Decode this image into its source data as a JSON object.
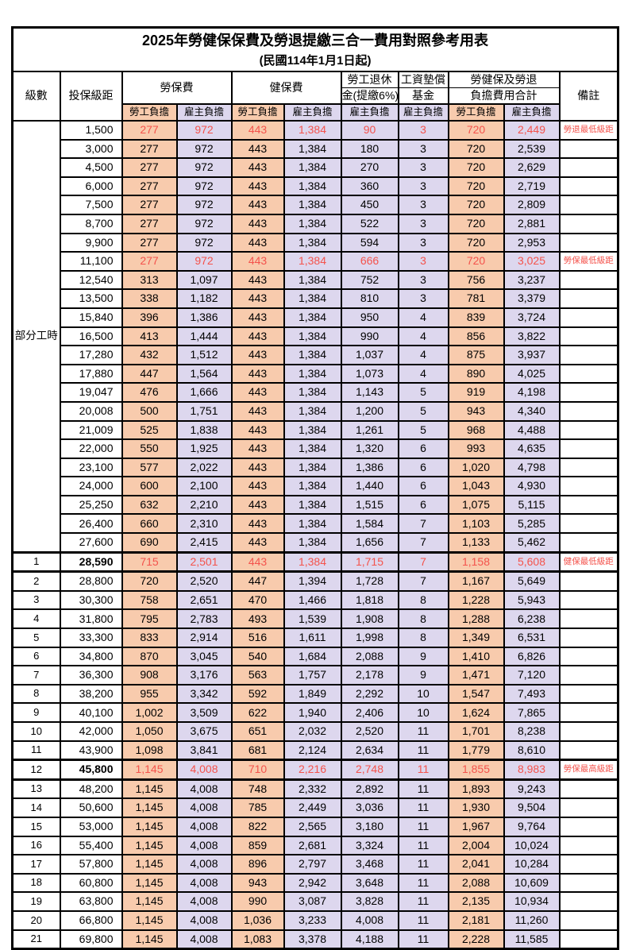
{
  "title": "2025年勞健保保費及勞退提繳三合一費用對照參考用表",
  "subtitle": "(民國114年1月1日起)",
  "colors": {
    "employee_fill": "#F8CBAD",
    "employer_fill": "#DDD7EE",
    "highlight_text": "#F4534C",
    "border": "#000000"
  },
  "header": {
    "level": "級數",
    "bracket": "投保級距",
    "labor_insurance": "勞保費",
    "health_insurance": "健保費",
    "pension_line1": "勞工退休",
    "pension_line2": "金(提繳6%)",
    "wage_fund_line1": "工資墊償",
    "wage_fund_line2": "基金",
    "total_line1": "勞健保及勞退",
    "total_line2": "負擔費用合計",
    "remark": "備註",
    "employee_share": "勞工負擔",
    "employer_share": "雇主負擔"
  },
  "part_time_label": "部分工時",
  "rows": [
    {
      "level": "",
      "bracket": "1,500",
      "cells": [
        "277",
        "972",
        "443",
        "1,384",
        "90",
        "3",
        "720",
        "2,449"
      ],
      "note": "勞退最低級距",
      "red": true,
      "bold": false,
      "thick": false
    },
    {
      "level": "",
      "bracket": "3,000",
      "cells": [
        "277",
        "972",
        "443",
        "1,384",
        "180",
        "3",
        "720",
        "2,539"
      ],
      "note": "",
      "red": false,
      "bold": false,
      "thick": false
    },
    {
      "level": "",
      "bracket": "4,500",
      "cells": [
        "277",
        "972",
        "443",
        "1,384",
        "270",
        "3",
        "720",
        "2,629"
      ],
      "note": "",
      "red": false,
      "bold": false,
      "thick": false
    },
    {
      "level": "",
      "bracket": "6,000",
      "cells": [
        "277",
        "972",
        "443",
        "1,384",
        "360",
        "3",
        "720",
        "2,719"
      ],
      "note": "",
      "red": false,
      "bold": false,
      "thick": false
    },
    {
      "level": "",
      "bracket": "7,500",
      "cells": [
        "277",
        "972",
        "443",
        "1,384",
        "450",
        "3",
        "720",
        "2,809"
      ],
      "note": "",
      "red": false,
      "bold": false,
      "thick": false
    },
    {
      "level": "",
      "bracket": "8,700",
      "cells": [
        "277",
        "972",
        "443",
        "1,384",
        "522",
        "3",
        "720",
        "2,881"
      ],
      "note": "",
      "red": false,
      "bold": false,
      "thick": false
    },
    {
      "level": "",
      "bracket": "9,900",
      "cells": [
        "277",
        "972",
        "443",
        "1,384",
        "594",
        "3",
        "720",
        "2,953"
      ],
      "note": "",
      "red": false,
      "bold": false,
      "thick": false
    },
    {
      "level": "",
      "bracket": "11,100",
      "cells": [
        "277",
        "972",
        "443",
        "1,384",
        "666",
        "3",
        "720",
        "3,025"
      ],
      "note": "勞保最低級距",
      "red": true,
      "bold": false,
      "thick": false
    },
    {
      "level": "",
      "bracket": "12,540",
      "cells": [
        "313",
        "1,097",
        "443",
        "1,384",
        "752",
        "3",
        "756",
        "3,237"
      ],
      "note": "",
      "red": false,
      "bold": false,
      "thick": false
    },
    {
      "level": "",
      "bracket": "13,500",
      "cells": [
        "338",
        "1,182",
        "443",
        "1,384",
        "810",
        "3",
        "781",
        "3,379"
      ],
      "note": "",
      "red": false,
      "bold": false,
      "thick": false
    },
    {
      "level": "",
      "bracket": "15,840",
      "cells": [
        "396",
        "1,386",
        "443",
        "1,384",
        "950",
        "4",
        "839",
        "3,724"
      ],
      "note": "",
      "red": false,
      "bold": false,
      "thick": false
    },
    {
      "level": "",
      "bracket": "16,500",
      "cells": [
        "413",
        "1,444",
        "443",
        "1,384",
        "990",
        "4",
        "856",
        "3,822"
      ],
      "note": "",
      "red": false,
      "bold": false,
      "thick": false
    },
    {
      "level": "",
      "bracket": "17,280",
      "cells": [
        "432",
        "1,512",
        "443",
        "1,384",
        "1,037",
        "4",
        "875",
        "3,937"
      ],
      "note": "",
      "red": false,
      "bold": false,
      "thick": false
    },
    {
      "level": "",
      "bracket": "17,880",
      "cells": [
        "447",
        "1,564",
        "443",
        "1,384",
        "1,073",
        "4",
        "890",
        "4,025"
      ],
      "note": "",
      "red": false,
      "bold": false,
      "thick": false
    },
    {
      "level": "",
      "bracket": "19,047",
      "cells": [
        "476",
        "1,666",
        "443",
        "1,384",
        "1,143",
        "5",
        "919",
        "4,198"
      ],
      "note": "",
      "red": false,
      "bold": false,
      "thick": false
    },
    {
      "level": "",
      "bracket": "20,008",
      "cells": [
        "500",
        "1,751",
        "443",
        "1,384",
        "1,200",
        "5",
        "943",
        "4,340"
      ],
      "note": "",
      "red": false,
      "bold": false,
      "thick": false
    },
    {
      "level": "",
      "bracket": "21,009",
      "cells": [
        "525",
        "1,838",
        "443",
        "1,384",
        "1,261",
        "5",
        "968",
        "4,488"
      ],
      "note": "",
      "red": false,
      "bold": false,
      "thick": false
    },
    {
      "level": "",
      "bracket": "22,000",
      "cells": [
        "550",
        "1,925",
        "443",
        "1,384",
        "1,320",
        "6",
        "993",
        "4,635"
      ],
      "note": "",
      "red": false,
      "bold": false,
      "thick": false
    },
    {
      "level": "",
      "bracket": "23,100",
      "cells": [
        "577",
        "2,022",
        "443",
        "1,384",
        "1,386",
        "6",
        "1,020",
        "4,798"
      ],
      "note": "",
      "red": false,
      "bold": false,
      "thick": false
    },
    {
      "level": "",
      "bracket": "24,000",
      "cells": [
        "600",
        "2,100",
        "443",
        "1,384",
        "1,440",
        "6",
        "1,043",
        "4,930"
      ],
      "note": "",
      "red": false,
      "bold": false,
      "thick": false
    },
    {
      "level": "",
      "bracket": "25,250",
      "cells": [
        "632",
        "2,210",
        "443",
        "1,384",
        "1,515",
        "6",
        "1,075",
        "5,115"
      ],
      "note": "",
      "red": false,
      "bold": false,
      "thick": false
    },
    {
      "level": "",
      "bracket": "26,400",
      "cells": [
        "660",
        "2,310",
        "443",
        "1,384",
        "1,584",
        "7",
        "1,103",
        "5,285"
      ],
      "note": "",
      "red": false,
      "bold": false,
      "thick": false
    },
    {
      "level": "",
      "bracket": "27,600",
      "cells": [
        "690",
        "2,415",
        "443",
        "1,384",
        "1,656",
        "7",
        "1,133",
        "5,462"
      ],
      "note": "",
      "red": false,
      "bold": false,
      "thick": false
    },
    {
      "level": "1",
      "bracket": "28,590",
      "cells": [
        "715",
        "2,501",
        "443",
        "1,384",
        "1,715",
        "7",
        "1,158",
        "5,608"
      ],
      "note": "健保最低級距",
      "red": true,
      "bold": true,
      "thick": true
    },
    {
      "level": "2",
      "bracket": "28,800",
      "cells": [
        "720",
        "2,520",
        "447",
        "1,394",
        "1,728",
        "7",
        "1,167",
        "5,649"
      ],
      "note": "",
      "red": false,
      "bold": false,
      "thick": false
    },
    {
      "level": "3",
      "bracket": "30,300",
      "cells": [
        "758",
        "2,651",
        "470",
        "1,466",
        "1,818",
        "8",
        "1,228",
        "5,943"
      ],
      "note": "",
      "red": false,
      "bold": false,
      "thick": false
    },
    {
      "level": "4",
      "bracket": "31,800",
      "cells": [
        "795",
        "2,783",
        "493",
        "1,539",
        "1,908",
        "8",
        "1,288",
        "6,238"
      ],
      "note": "",
      "red": false,
      "bold": false,
      "thick": false
    },
    {
      "level": "5",
      "bracket": "33,300",
      "cells": [
        "833",
        "2,914",
        "516",
        "1,611",
        "1,998",
        "8",
        "1,349",
        "6,531"
      ],
      "note": "",
      "red": false,
      "bold": false,
      "thick": false
    },
    {
      "level": "6",
      "bracket": "34,800",
      "cells": [
        "870",
        "3,045",
        "540",
        "1,684",
        "2,088",
        "9",
        "1,410",
        "6,826"
      ],
      "note": "",
      "red": false,
      "bold": false,
      "thick": false
    },
    {
      "level": "7",
      "bracket": "36,300",
      "cells": [
        "908",
        "3,176",
        "563",
        "1,757",
        "2,178",
        "9",
        "1,471",
        "7,120"
      ],
      "note": "",
      "red": false,
      "bold": false,
      "thick": false
    },
    {
      "level": "8",
      "bracket": "38,200",
      "cells": [
        "955",
        "3,342",
        "592",
        "1,849",
        "2,292",
        "10",
        "1,547",
        "7,493"
      ],
      "note": "",
      "red": false,
      "bold": false,
      "thick": false
    },
    {
      "level": "9",
      "bracket": "40,100",
      "cells": [
        "1,002",
        "3,509",
        "622",
        "1,940",
        "2,406",
        "10",
        "1,624",
        "7,865"
      ],
      "note": "",
      "red": false,
      "bold": false,
      "thick": false
    },
    {
      "level": "10",
      "bracket": "42,000",
      "cells": [
        "1,050",
        "3,675",
        "651",
        "2,032",
        "2,520",
        "11",
        "1,701",
        "8,238"
      ],
      "note": "",
      "red": false,
      "bold": false,
      "thick": false
    },
    {
      "level": "11",
      "bracket": "43,900",
      "cells": [
        "1,098",
        "3,841",
        "681",
        "2,124",
        "2,634",
        "11",
        "1,779",
        "8,610"
      ],
      "note": "",
      "red": false,
      "bold": false,
      "thick": false
    },
    {
      "level": "12",
      "bracket": "45,800",
      "cells": [
        "1,145",
        "4,008",
        "710",
        "2,216",
        "2,748",
        "11",
        "1,855",
        "8,983"
      ],
      "note": "勞保最高級距",
      "red": true,
      "bold": true,
      "thick": true
    },
    {
      "level": "13",
      "bracket": "48,200",
      "cells": [
        "1,145",
        "4,008",
        "748",
        "2,332",
        "2,892",
        "11",
        "1,893",
        "9,243"
      ],
      "note": "",
      "red": false,
      "bold": false,
      "thick": false
    },
    {
      "level": "14",
      "bracket": "50,600",
      "cells": [
        "1,145",
        "4,008",
        "785",
        "2,449",
        "3,036",
        "11",
        "1,930",
        "9,504"
      ],
      "note": "",
      "red": false,
      "bold": false,
      "thick": false
    },
    {
      "level": "15",
      "bracket": "53,000",
      "cells": [
        "1,145",
        "4,008",
        "822",
        "2,565",
        "3,180",
        "11",
        "1,967",
        "9,764"
      ],
      "note": "",
      "red": false,
      "bold": false,
      "thick": false
    },
    {
      "level": "16",
      "bracket": "55,400",
      "cells": [
        "1,145",
        "4,008",
        "859",
        "2,681",
        "3,324",
        "11",
        "2,004",
        "10,024"
      ],
      "note": "",
      "red": false,
      "bold": false,
      "thick": false
    },
    {
      "level": "17",
      "bracket": "57,800",
      "cells": [
        "1,145",
        "4,008",
        "896",
        "2,797",
        "3,468",
        "11",
        "2,041",
        "10,284"
      ],
      "note": "",
      "red": false,
      "bold": false,
      "thick": false
    },
    {
      "level": "18",
      "bracket": "60,800",
      "cells": [
        "1,145",
        "4,008",
        "943",
        "2,942",
        "3,648",
        "11",
        "2,088",
        "10,609"
      ],
      "note": "",
      "red": false,
      "bold": false,
      "thick": false
    },
    {
      "level": "19",
      "bracket": "63,800",
      "cells": [
        "1,145",
        "4,008",
        "990",
        "3,087",
        "3,828",
        "11",
        "2,135",
        "10,934"
      ],
      "note": "",
      "red": false,
      "bold": false,
      "thick": false
    },
    {
      "level": "20",
      "bracket": "66,800",
      "cells": [
        "1,145",
        "4,008",
        "1,036",
        "3,233",
        "4,008",
        "11",
        "2,181",
        "11,260"
      ],
      "note": "",
      "red": false,
      "bold": false,
      "thick": false
    },
    {
      "level": "21",
      "bracket": "69,800",
      "cells": [
        "1,145",
        "4,008",
        "1,083",
        "3,378",
        "4,188",
        "11",
        "2,228",
        "11,585"
      ],
      "note": "",
      "red": false,
      "bold": false,
      "thick": false
    }
  ]
}
